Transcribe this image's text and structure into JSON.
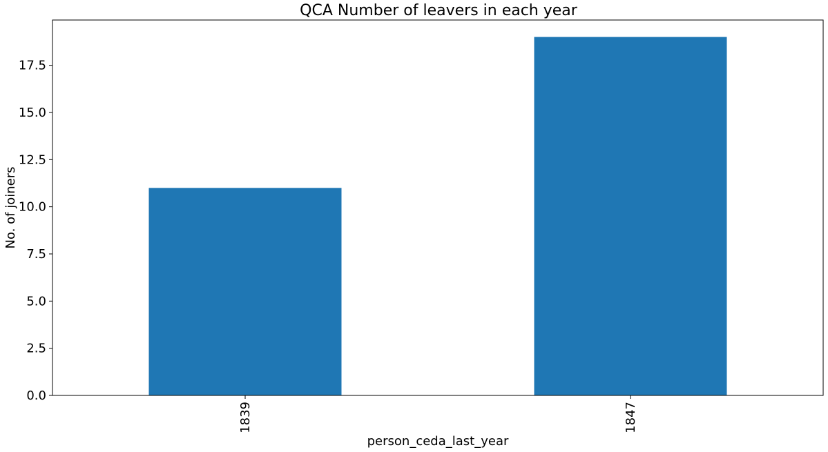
{
  "chart_data": {
    "type": "bar",
    "title": "QCA Number of leavers in each year",
    "xlabel": "person_ceda_last_year",
    "ylabel": "No. of joiners",
    "categories": [
      "1839",
      "1847"
    ],
    "values": [
      11,
      19
    ],
    "ylim": [
      0,
      19.9
    ],
    "yticks": [
      0.0,
      2.5,
      5.0,
      7.5,
      10.0,
      12.5,
      15.0,
      17.5
    ],
    "ytick_labels": [
      "0.0",
      "2.5",
      "5.0",
      "7.5",
      "10.0",
      "12.5",
      "15.0",
      "17.5"
    ],
    "xtick_rotation": "vertical",
    "grid": false,
    "legend": "none",
    "bar_color": "#1f77b4"
  }
}
